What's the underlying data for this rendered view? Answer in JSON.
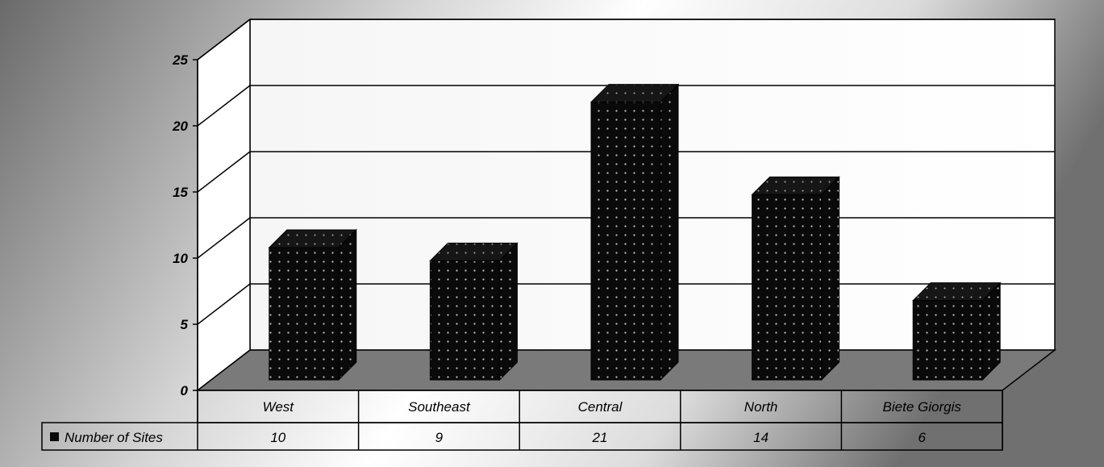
{
  "chart_data": {
    "type": "bar",
    "style": "3d-column-with-data-table",
    "categories": [
      "West",
      "Southeast",
      "Central",
      "North",
      "Biete Giorgis"
    ],
    "series": [
      {
        "name": "Number of Sites",
        "values": [
          10,
          9,
          21,
          14,
          6
        ]
      }
    ],
    "y_ticks": [
      "0",
      "5",
      "10",
      "15",
      "20",
      "25"
    ],
    "ylim": [
      0,
      25
    ],
    "grid": true,
    "legend": "data-table-left",
    "colors": {
      "bar": "#0a0a0a",
      "bar_dots": "#b8b8b8",
      "floor": "#7a7a7a",
      "wall": "#ffffff",
      "background_light": "#ffffff",
      "background_dark": "#6a6a6a"
    }
  }
}
